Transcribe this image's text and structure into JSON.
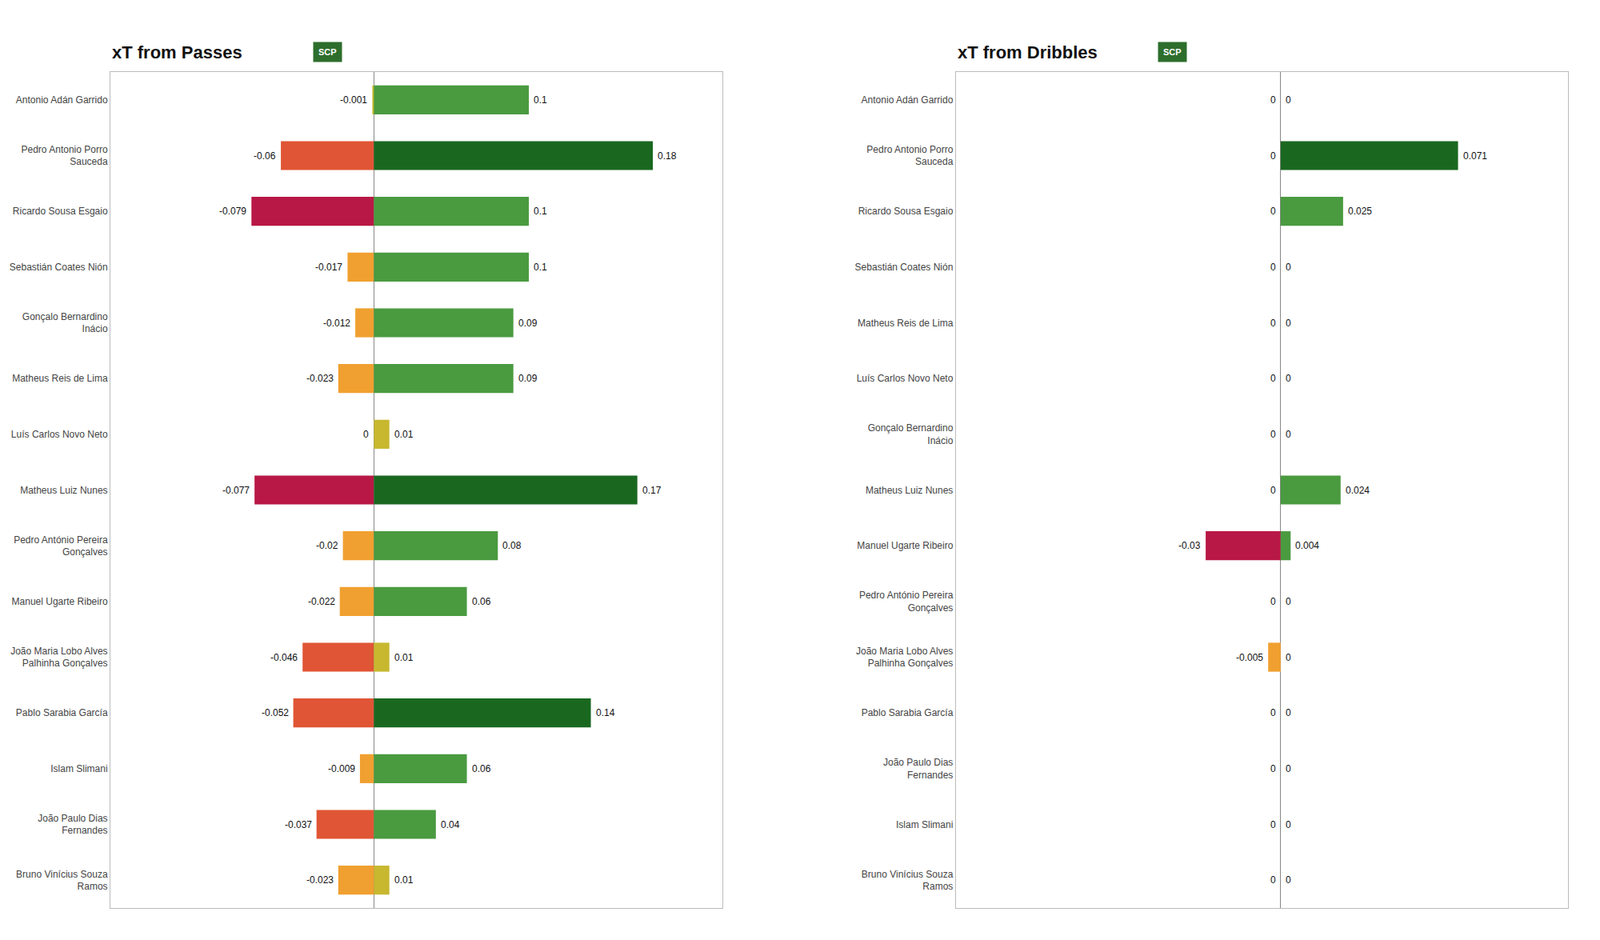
{
  "chart_data": [
    {
      "type": "bar",
      "orientation": "horizontal",
      "title": "xT from Passes",
      "annotations": [
        {
          "text": "SCP",
          "color": "#2d6e2d"
        }
      ],
      "categories": [
        "Antonio Adán Garrido",
        "Pedro Antonio Porro\nSauceda",
        "Ricardo Sousa Esgaio",
        "Sebastián Coates Nión",
        "Gonçalo Bernardino\nInácio",
        "Matheus Reis de Lima",
        "Luís Carlos Novo Neto",
        "Matheus Luiz Nunes",
        "Pedro António Pereira\nGonçalves",
        "Manuel Ugarte Ribeiro",
        "João Maria Lobo Alves\nPalhinha Gonçalves",
        "Pablo Sarabia García",
        "Islam Slimani",
        "João Paulo Dias\nFernandes",
        "Bruno Vinícius Souza\nRamos"
      ],
      "series": [
        {
          "values": [
            -0.001,
            -0.06,
            -0.079,
            -0.017,
            -0.012,
            -0.023,
            0,
            -0.077,
            -0.02,
            -0.022,
            -0.046,
            -0.052,
            -0.009,
            -0.037,
            -0.023
          ],
          "colors": [
            "#c8b830",
            "#e05535",
            "#b81845",
            "#f0a030",
            "#f0a030",
            "#f0a030",
            "#c8b830",
            "#b81845",
            "#f0a030",
            "#f0a030",
            "#e05535",
            "#e05535",
            "#f0a030",
            "#e05535",
            "#f0a030"
          ]
        },
        {
          "values": [
            0.1,
            0.18,
            0.1,
            0.1,
            0.09,
            0.09,
            0.01,
            0.17,
            0.08,
            0.06,
            0.01,
            0.14,
            0.06,
            0.04,
            0.01
          ],
          "colors": [
            "#4a9a40",
            "#1a6820",
            "#4a9a40",
            "#4a9a40",
            "#4a9a40",
            "#4a9a40",
            "#c8b830",
            "#1a6820",
            "#4a9a40",
            "#4a9a40",
            "#c8b830",
            "#1a6820",
            "#4a9a40",
            "#4a9a40",
            "#c8b830"
          ]
        }
      ],
      "xlim": [
        -0.17,
        0.225
      ],
      "xticks": [],
      "tick_labels": "y",
      "grid": false,
      "data_labels": true
    },
    {
      "type": "bar",
      "orientation": "horizontal",
      "title": "xT from Dribbles",
      "annotations": [
        {
          "text": "SCP",
          "color": "#2d6e2d"
        }
      ],
      "categories": [
        "Antonio Adán Garrido",
        "Pedro Antonio Porro\nSauceda",
        "Ricardo Sousa Esgaio",
        "Sebastián Coates Nión",
        "Matheus Reis de Lima",
        "Luís Carlos Novo Neto",
        "Gonçalo Bernardino\nInácio",
        "Matheus Luiz Nunes",
        "Manuel Ugarte Ribeiro",
        "Pedro António Pereira\nGonçalves",
        "João Maria Lobo Alves\nPalhinha Gonçalves",
        "Pablo Sarabia García",
        "João Paulo Dias\nFernandes",
        "Islam Slimani",
        "Bruno Vinícius Souza\nRamos"
      ],
      "series": [
        {
          "values": [
            0,
            0,
            0,
            0,
            0,
            0,
            0,
            0,
            -0.03,
            0,
            -0.005,
            0,
            0,
            0,
            0
          ],
          "colors": [
            "#c8b830",
            "#c8b830",
            "#c8b830",
            "#c8b830",
            "#c8b830",
            "#c8b830",
            "#c8b830",
            "#c8b830",
            "#b81845",
            "#c8b830",
            "#f0a030",
            "#c8b830",
            "#c8b830",
            "#c8b830",
            "#c8b830"
          ]
        },
        {
          "values": [
            0,
            0.071,
            0.025,
            0,
            0,
            0,
            0,
            0.024,
            0.004,
            0,
            0,
            0,
            0,
            0,
            0
          ],
          "colors": [
            "#c8b830",
            "#1a6820",
            "#4a9a40",
            "#c8b830",
            "#c8b830",
            "#c8b830",
            "#c8b830",
            "#4a9a40",
            "#4a9a40",
            "#c8b830",
            "#c8b830",
            "#c8b830",
            "#c8b830",
            "#c8b830",
            "#c8b830"
          ]
        }
      ],
      "xlim": [
        -0.13,
        0.115
      ],
      "xticks": [],
      "tick_labels": "y",
      "grid": false,
      "data_labels": true
    }
  ]
}
